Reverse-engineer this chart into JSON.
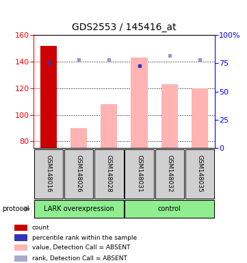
{
  "title": "GDS2553 / 145416_at",
  "samples": [
    "GSM148016",
    "GSM148026",
    "GSM148028",
    "GSM148031",
    "GSM148032",
    "GSM148035"
  ],
  "ylim_left": [
    75,
    160
  ],
  "ylim_right": [
    0,
    100
  ],
  "yticks_left": [
    80,
    100,
    120,
    140,
    160
  ],
  "yticks_right": [
    0,
    25,
    50,
    75,
    100
  ],
  "ytick_labels_right": [
    "0",
    "25",
    "50",
    "75",
    "100%"
  ],
  "bar_values": [
    152,
    90,
    108,
    143,
    123,
    120
  ],
  "bar_colors": [
    "#cc0000",
    "#ffb3b3",
    "#ffb3b3",
    "#ffb3b3",
    "#ffb3b3",
    "#ffb3b3"
  ],
  "blue_sq_pct": [
    75,
    78,
    78,
    73,
    82,
    78
  ],
  "blue_sq_colors": [
    "#3333bb",
    "#9999cc",
    "#9999cc",
    "#3333bb",
    "#9999cc",
    "#9999cc"
  ],
  "bar_bottom": 75,
  "legend_items": [
    {
      "color": "#cc0000",
      "label": "count"
    },
    {
      "color": "#3333bb",
      "label": "percentile rank within the sample"
    },
    {
      "color": "#ffb3b3",
      "label": "value, Detection Call = ABSENT"
    },
    {
      "color": "#aaaacc",
      "label": "rank, Detection Call = ABSENT"
    }
  ],
  "background_color": "#ffffff",
  "plot_bg_color": "#ffffff",
  "sample_box_color": "#d0d0d0",
  "title_fontsize": 10,
  "tick_fontsize": 8,
  "bar_width": 0.55
}
